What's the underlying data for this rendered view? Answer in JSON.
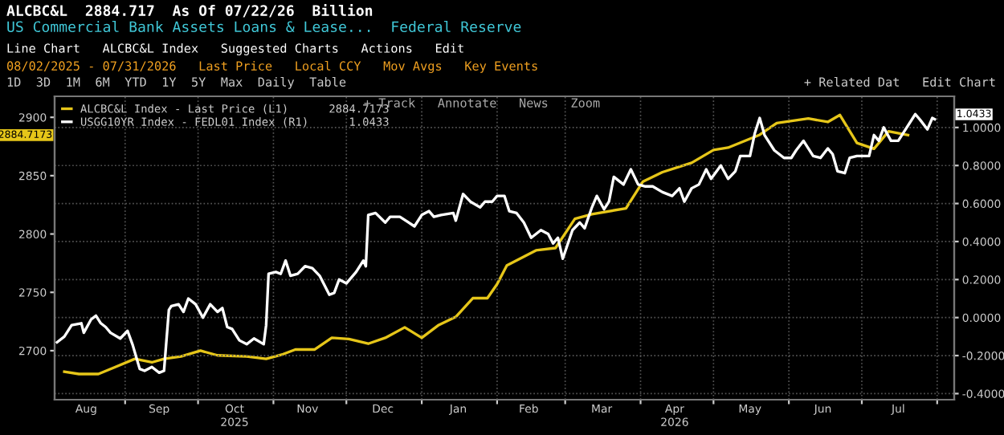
{
  "chart_data": {
    "type": "line",
    "title": "ALCBC&L  2884.717  As Of 07/22/26  Billion",
    "subtitle": "US Commercial Bank Assets Loans & Lease...  Federal Reserve",
    "annotations": [
      "Line Chart   ALCBC&L Index   Suggested Charts   Actions   Edit",
      "08/02/2025 - 07/31/2026   Last Price   Local CCY   Mov Avgs   Key Events",
      "1D  3D  1M  6M  YTD  1Y  5Y  Max  Daily  Table",
      "+ Related Dat   Edit Chart",
      "+ Track   Annotate   News   Zoom",
      "2884.7173",
      "1.0433"
    ],
    "series": [
      {
        "name": "ALCBC&L Index - Last Price (L1)      2884.7173",
        "color": "#e6c619",
        "x": [
          "2025-08-07",
          "2025-08-13",
          "2025-08-21",
          "2025-08-28",
          "2025-09-05",
          "2025-09-12",
          "2025-09-17",
          "2025-09-24",
          "2025-10-02",
          "2025-10-09",
          "2025-10-21",
          "2025-10-29",
          "2025-11-05",
          "2025-11-10",
          "2025-11-18",
          "2025-11-25",
          "2025-12-02",
          "2025-12-10",
          "2025-12-17",
          "2025-12-25",
          "2026-01-01",
          "2026-01-08",
          "2026-01-15",
          "2026-01-22",
          "2026-01-28",
          "2026-02-01",
          "2026-02-05",
          "2026-02-17",
          "2026-02-25",
          "2026-03-05",
          "2026-03-12",
          "2026-03-26",
          "2026-04-02",
          "2026-04-10",
          "2026-04-22",
          "2026-05-01",
          "2026-05-07",
          "2026-05-20",
          "2026-05-27",
          "2026-06-09",
          "2026-06-17",
          "2026-06-22",
          "2026-06-29",
          "2026-07-06",
          "2026-07-12",
          "2026-07-20"
        ],
        "values": [
          2682,
          2680,
          2680,
          2686,
          2693,
          2690,
          2693,
          2695,
          2700,
          2696,
          2695,
          2693,
          2697,
          2701,
          2701,
          2711,
          2710,
          2706,
          2711,
          2720,
          2711,
          2722,
          2729,
          2745,
          2745,
          2757,
          2773,
          2786,
          2788,
          2813,
          2817,
          2822,
          2845,
          2853,
          2861,
          2872,
          2874,
          2885,
          2895,
          2899,
          2896,
          2902,
          2878,
          2873,
          2888,
          2884.7173
        ]
      },
      {
        "name": "USGG10YR Index - FEDL01 Index (R1)      1.0433",
        "color": "#ffffff",
        "axis": "y2",
        "x": [
          "2025-08-04",
          "2025-08-07",
          "2025-08-10",
          "2025-08-14",
          "2025-08-15",
          "2025-08-18",
          "2025-08-20",
          "2025-08-22",
          "2025-08-24",
          "2025-08-26",
          "2025-08-30",
          "2025-09-02",
          "2025-09-04",
          "2025-09-07",
          "2025-09-09",
          "2025-09-12",
          "2025-09-15",
          "2025-09-17",
          "2025-09-19",
          "2025-09-20",
          "2025-09-23",
          "2025-09-25",
          "2025-09-27",
          "2025-09-30",
          "2025-10-03",
          "2025-10-06",
          "2025-10-09",
          "2025-10-11",
          "2025-10-13",
          "2025-10-15",
          "2025-10-18",
          "2025-10-21",
          "2025-10-24",
          "2025-10-28",
          "2025-10-29",
          "2025-10-30",
          "2025-11-02",
          "2025-11-04",
          "2025-11-06",
          "2025-11-08",
          "2025-11-11",
          "2025-11-14",
          "2025-11-17",
          "2025-11-20",
          "2025-11-24",
          "2025-11-26",
          "2025-11-28",
          "2025-12-01",
          "2025-12-05",
          "2025-12-08",
          "2025-12-09",
          "2025-12-10",
          "2025-12-13",
          "2025-12-17",
          "2025-12-19",
          "2025-12-23",
          "2025-12-29",
          "2026-01-01",
          "2026-01-04",
          "2026-01-06",
          "2026-01-09",
          "2026-01-14",
          "2026-01-15",
          "2026-01-18",
          "2026-01-21",
          "2026-01-25",
          "2026-01-27",
          "2026-01-30",
          "2026-02-01",
          "2026-02-04",
          "2026-02-06",
          "2026-02-09",
          "2026-02-12",
          "2026-02-15",
          "2026-02-19",
          "2026-02-22",
          "2026-02-24",
          "2026-02-26",
          "2026-02-28",
          "2026-03-04",
          "2026-03-07",
          "2026-03-09",
          "2026-03-12",
          "2026-03-14",
          "2026-03-17",
          "2026-03-19",
          "2026-03-21",
          "2026-03-25",
          "2026-03-28",
          "2026-03-31",
          "2026-04-03",
          "2026-04-06",
          "2026-04-10",
          "2026-04-14",
          "2026-04-17",
          "2026-04-19",
          "2026-04-22",
          "2026-04-25",
          "2026-04-28",
          "2026-04-30",
          "2026-05-04",
          "2026-05-07",
          "2026-05-10",
          "2026-05-12",
          "2026-05-16",
          "2026-05-18",
          "2026-05-20",
          "2026-05-22",
          "2026-05-26",
          "2026-05-30",
          "2026-06-02",
          "2026-06-04",
          "2026-06-07",
          "2026-06-09",
          "2026-06-11",
          "2026-06-14",
          "2026-06-17",
          "2026-06-19",
          "2026-06-21",
          "2026-06-24",
          "2026-06-26",
          "2026-06-29",
          "2026-07-04",
          "2026-07-06",
          "2026-07-08",
          "2026-07-10",
          "2026-07-13",
          "2026-07-16",
          "2026-07-18",
          "2026-07-23",
          "2026-07-25",
          "2026-07-28",
          "2026-07-30",
          "2026-07-31"
        ],
        "values": [
          -0.13,
          -0.1,
          -0.04,
          -0.03,
          -0.08,
          -0.01,
          0.01,
          -0.03,
          -0.05,
          -0.08,
          -0.11,
          -0.07,
          -0.14,
          -0.27,
          -0.28,
          -0.26,
          -0.29,
          -0.28,
          0.04,
          0.06,
          0.07,
          0.03,
          0.1,
          0.07,
          0.0,
          0.07,
          0.03,
          0.05,
          -0.05,
          -0.06,
          -0.12,
          -0.14,
          -0.11,
          -0.14,
          -0.04,
          0.23,
          0.24,
          0.23,
          0.3,
          0.22,
          0.23,
          0.27,
          0.26,
          0.22,
          0.12,
          0.13,
          0.2,
          0.18,
          0.24,
          0.3,
          0.27,
          0.54,
          0.55,
          0.5,
          0.53,
          0.53,
          0.48,
          0.54,
          0.56,
          0.53,
          0.54,
          0.55,
          0.51,
          0.65,
          0.61,
          0.58,
          0.61,
          0.61,
          0.64,
          0.64,
          0.56,
          0.55,
          0.5,
          0.42,
          0.46,
          0.44,
          0.39,
          0.42,
          0.31,
          0.46,
          0.5,
          0.47,
          0.58,
          0.64,
          0.57,
          0.61,
          0.74,
          0.7,
          0.78,
          0.7,
          0.69,
          0.69,
          0.66,
          0.64,
          0.68,
          0.61,
          0.68,
          0.7,
          0.78,
          0.73,
          0.8,
          0.73,
          0.77,
          0.85,
          0.85,
          0.97,
          1.05,
          0.96,
          0.88,
          0.84,
          0.84,
          0.88,
          0.93,
          0.89,
          0.85,
          0.84,
          0.89,
          0.86,
          0.77,
          0.76,
          0.84,
          0.85,
          0.85,
          0.96,
          0.93,
          1.0,
          0.93,
          0.93,
          0.97,
          1.07,
          1.04,
          0.99,
          1.05,
          1.0433
        ]
      }
    ],
    "xlim": [
      "2025-08-03",
      "2026-08-08"
    ],
    "xticks": [
      {
        "value": "2025-09-01",
        "label": null
      },
      {
        "value": "2025-10-01",
        "label": null
      },
      {
        "value": "2025-11-01",
        "label": null
      },
      {
        "value": "2025-12-01",
        "label": null
      },
      {
        "value": "2026-01-01",
        "label": null
      },
      {
        "value": "2026-02-01",
        "label": null
      },
      {
        "value": "2026-03-01",
        "label": null
      },
      {
        "value": "2026-04-01",
        "label": null
      },
      {
        "value": "2026-05-01",
        "label": null
      },
      {
        "value": "2026-06-01",
        "label": null
      },
      {
        "value": "2026-07-01",
        "label": null
      },
      {
        "value": "2026-08-01",
        "label": null
      },
      {
        "value": "2025-08-16",
        "label": "Aug"
      },
      {
        "value": "2025-09-15",
        "label": "Sep"
      },
      {
        "value": "2025-10-16",
        "label": "Oct\n2025"
      },
      {
        "value": "2025-11-15",
        "label": "Nov"
      },
      {
        "value": "2025-12-16",
        "label": "Dec"
      },
      {
        "value": "2026-01-16",
        "label": "Jan"
      },
      {
        "value": "2026-02-14",
        "label": "Feb"
      },
      {
        "value": "2026-03-16",
        "label": "Mar"
      },
      {
        "value": "2026-04-15",
        "label": "Apr\n2026"
      },
      {
        "value": "2026-05-16",
        "label": "May"
      },
      {
        "value": "2026-06-15",
        "label": "Jun"
      },
      {
        "value": "2026-07-16",
        "label": "Jul"
      }
    ],
    "ylim": [
      2658,
      2918
    ],
    "yticks": [
      2700,
      2750,
      2800,
      2850,
      2900
    ],
    "y2lim": [
      -0.432,
      1.164
    ],
    "y2ticks": [
      {
        "value": -0.4,
        "label": "-0.4000"
      },
      {
        "value": -0.2,
        "label": "-0.2000"
      },
      {
        "value": 0,
        "label": "0.0000"
      },
      {
        "value": 0.2,
        "label": "0.2000"
      },
      {
        "value": 0.4,
        "label": "0.4000"
      },
      {
        "value": 0.6,
        "label": "0.6000"
      },
      {
        "value": 0.8,
        "label": "0.8000"
      },
      {
        "value": 1.0,
        "label": "1.0000"
      }
    ],
    "grid": true,
    "legend": "top left",
    "marker": "none",
    "line_style": "solid"
  }
}
